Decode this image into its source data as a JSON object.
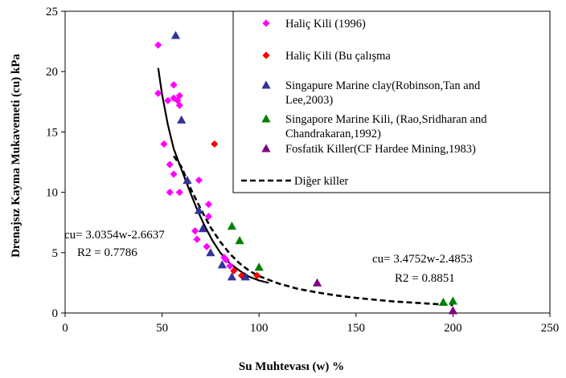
{
  "chart_data": {
    "type": "scatter",
    "xlabel": "Su Muhtevası (w) %",
    "ylabel": "Drenajsız Kayma Mukavemeti (cu) kPa",
    "xlim": [
      0,
      250
    ],
    "ylim": [
      0,
      25
    ],
    "xticks": [
      "0",
      "50",
      "100",
      "150",
      "200",
      "250"
    ],
    "yticks": [
      "0",
      "5",
      "10",
      "15",
      "20",
      "25"
    ],
    "grid": false,
    "legend_position": "top-right",
    "series": [
      {
        "name": "Haliç Kili (1996)",
        "marker": "diamond",
        "color": "#ff00ff",
        "points": [
          [
            48,
            22.2
          ],
          [
            48,
            18.2
          ],
          [
            51,
            14
          ],
          [
            53,
            17.6
          ],
          [
            54,
            12.3
          ],
          [
            54,
            10
          ],
          [
            56,
            17.8
          ],
          [
            56,
            18.9
          ],
          [
            56,
            11.5
          ],
          [
            58,
            17.6
          ],
          [
            59,
            17.2
          ],
          [
            59,
            18
          ],
          [
            59,
            10
          ],
          [
            67,
            6.8
          ],
          [
            68,
            6.1
          ],
          [
            69,
            11
          ],
          [
            73,
            5.5
          ],
          [
            74,
            8
          ],
          [
            74,
            9
          ],
          [
            82,
            4.6
          ],
          [
            83,
            4.4
          ],
          [
            85,
            3.9
          ]
        ]
      },
      {
        "name": "Haliç Kili (Bu çalışma",
        "marker": "diamond",
        "color": "#ff0000",
        "points": [
          [
            77,
            14
          ],
          [
            87,
            3.5
          ],
          [
            91,
            3.1
          ],
          [
            99,
            3.1
          ]
        ]
      },
      {
        "name": "Singapure Marine clay(Robinson,Tan and Lee,2003)",
        "marker": "triangle",
        "color": "#333399",
        "points": [
          [
            57,
            23
          ],
          [
            60,
            16
          ],
          [
            63,
            11
          ],
          [
            69,
            8.5
          ],
          [
            71,
            7
          ],
          [
            75,
            5
          ],
          [
            81,
            4
          ],
          [
            86,
            3
          ],
          [
            93,
            3
          ]
        ]
      },
      {
        "name": "Singapore Marine Kili, (Rao,Sridharan and Chandrakaran,1992)",
        "marker": "triangle",
        "color": "#008000",
        "points": [
          [
            86,
            7.2
          ],
          [
            90,
            6
          ],
          [
            100,
            3.8
          ],
          [
            195,
            0.9
          ],
          [
            200,
            1
          ]
        ]
      },
      {
        "name": "Fosfatik Killer(CF Hardee Mining,1983)",
        "marker": "triangle",
        "color": "#800080",
        "points": [
          [
            130,
            2.5
          ],
          [
            200,
            0.2
          ]
        ]
      }
    ],
    "curves": [
      {
        "name": "",
        "style": "solid",
        "color": "#000000",
        "points": [
          [
            48,
            20.3
          ],
          [
            50,
            18.1
          ],
          [
            53,
            15.6
          ],
          [
            56,
            13.6
          ],
          [
            60,
            11.9
          ],
          [
            64,
            10.2
          ],
          [
            68,
            8.6
          ],
          [
            72,
            7.2
          ],
          [
            76,
            6
          ],
          [
            80,
            5
          ],
          [
            85,
            4.1
          ],
          [
            90,
            3.5
          ],
          [
            95,
            3
          ],
          [
            100,
            2.7
          ],
          [
            105,
            2.5
          ]
        ]
      },
      {
        "name": "Diğer killer",
        "style": "dashed",
        "color": "#000000",
        "points": [
          [
            56,
            13
          ],
          [
            60,
            12.1
          ],
          [
            65,
            10.2
          ],
          [
            70,
            8.6
          ],
          [
            75,
            7.1
          ],
          [
            80,
            5.9
          ],
          [
            85,
            4.9
          ],
          [
            90,
            4.1
          ],
          [
            95,
            3.5
          ],
          [
            100,
            3.05
          ],
          [
            110,
            2.45
          ],
          [
            120,
            2
          ],
          [
            130,
            1.7
          ],
          [
            140,
            1.45
          ],
          [
            150,
            1.25
          ],
          [
            160,
            1.1
          ],
          [
            170,
            0.95
          ],
          [
            180,
            0.85
          ],
          [
            190,
            0.75
          ],
          [
            200,
            0.65
          ]
        ]
      }
    ],
    "annotations": [
      {
        "lines": [
          "cu= 3.0354w-2.6637",
          "R2 = 0.7786"
        ]
      },
      {
        "lines": [
          "cu= 3.4752w-2.4853",
          "R2 = 0.8851"
        ]
      }
    ]
  }
}
